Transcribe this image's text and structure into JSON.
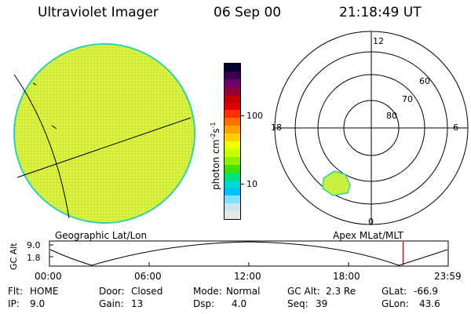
{
  "header": {
    "instrument": "Ultraviolet Imager",
    "date": "06 Sep 00",
    "time": "21:18:49 UT"
  },
  "colorbar": {
    "unit_label": "photon cm",
    "unit_exp1": "-2",
    "unit_mid": "s",
    "unit_exp2": "-1",
    "tick_high": "100",
    "tick_low": "10",
    "colors": [
      "#000030",
      "#3a0050",
      "#6a006a",
      "#900040",
      "#c00000",
      "#e00000",
      "#ff3000",
      "#ff7000",
      "#ffa000",
      "#ffd000",
      "#f0ff00",
      "#c8ff00",
      "#90f000",
      "#40e000",
      "#00e080",
      "#00d8d0",
      "#00c0ff",
      "#80e0ff",
      "#c8e8f0",
      "#e8e8e8"
    ]
  },
  "geo_panel": {
    "label": "Geographic Lat/Lon",
    "fill_color": "#d8f040",
    "edge_color": "#30d0b0"
  },
  "polar_panel": {
    "label": "Apex MLat/MLT",
    "mlt_top": "12",
    "mlt_left": "18",
    "mlt_right": "6",
    "mlt_bottom": "0",
    "lat_60": "60",
    "lat_70": "70",
    "lat_80": "80",
    "patch_color": "#c8f040"
  },
  "altitude_plot": {
    "ylabel": "GC Alt",
    "ytick_high": "9.0",
    "ytick_low": "1.8",
    "xticks": [
      "00:00",
      "06:00",
      "12:00",
      "18:00",
      "23:59"
    ],
    "marker_color": "#e00000",
    "marker_time_fraction": 0.887
  },
  "status": {
    "row1": [
      {
        "key": "Flt:",
        "val": "HOME"
      },
      {
        "key": "Door:",
        "val": "Closed"
      },
      {
        "key": "Mode:",
        "val": "Normal"
      },
      {
        "key": "GC Alt:",
        "val": "2.3 Re"
      },
      {
        "key": "GLat:",
        "val": "-66.9"
      }
    ],
    "row2": [
      {
        "key": "IP:",
        "val": "9.0"
      },
      {
        "key": "Gain:",
        "val": "13"
      },
      {
        "key": "Dsp:",
        "val": "4.0"
      },
      {
        "key": "Seq:",
        "val": "39"
      },
      {
        "key": "GLon:",
        "val": "43.6"
      }
    ]
  }
}
